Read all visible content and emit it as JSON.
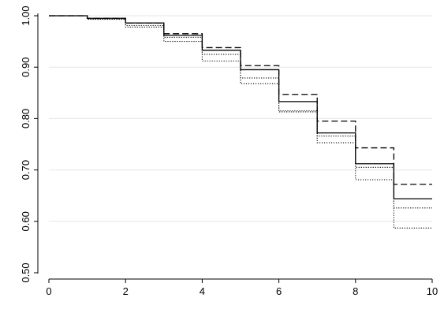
{
  "chart_data": {
    "type": "line",
    "title": "",
    "xlabel": "",
    "ylabel": "",
    "xlim": [
      0,
      10
    ],
    "ylim": [
      0.5,
      1.0
    ],
    "grid": true,
    "legend": "none",
    "x_ticks": [
      0,
      2,
      4,
      6,
      8,
      10
    ],
    "x_tick_labels": [
      "0",
      "2",
      "4",
      "6",
      "8",
      "10"
    ],
    "y_ticks": [
      0.5,
      0.6,
      0.7,
      0.8,
      0.9,
      1.0
    ],
    "y_tick_labels": [
      "0.50",
      "0.60",
      "0.70",
      "0.80",
      "0.90",
      "1.00"
    ],
    "step_x": [
      0,
      1,
      2,
      3,
      4,
      5,
      6,
      7,
      8,
      9,
      10
    ],
    "series": [
      {
        "style": "solid",
        "color": "#000000",
        "values": [
          1.0,
          0.995,
          0.986,
          0.962,
          0.933,
          0.895,
          0.833,
          0.772,
          0.712,
          0.644,
          0.644
        ]
      },
      {
        "style": "dashed",
        "color": "#000000",
        "values": [
          1.0,
          0.995,
          0.986,
          0.965,
          0.938,
          0.903,
          0.847,
          0.795,
          0.743,
          0.672,
          0.672
        ]
      },
      {
        "style": "dotted",
        "color": "#000000",
        "values": [
          1.0,
          0.993,
          0.978,
          0.95,
          0.912,
          0.868,
          0.813,
          0.753,
          0.681,
          0.587,
          0.587
        ]
      },
      {
        "style": "dotted",
        "color": "#000000",
        "values": [
          1.0,
          0.994,
          0.981,
          0.958,
          0.925,
          0.879,
          0.815,
          0.766,
          0.705,
          0.626,
          0.626
        ]
      }
    ]
  }
}
